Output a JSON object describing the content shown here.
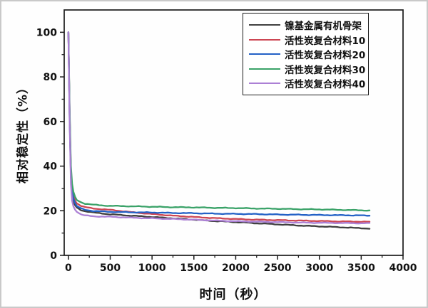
{
  "figure": {
    "background_color": "#fefefe",
    "frame_color": "#c9c9c9",
    "axis_color": "#1a1a1a"
  },
  "chart_data": {
    "type": "line",
    "title": "",
    "xlabel": "时间（秒）",
    "ylabel": "相对稳定性（%）",
    "xlim": [
      -50,
      4000
    ],
    "ylim": [
      0,
      110
    ],
    "x_ticks": [
      0,
      500,
      1000,
      1500,
      2000,
      2500,
      3000,
      3500,
      4000
    ],
    "y_ticks": [
      0,
      20,
      40,
      60,
      80,
      100
    ],
    "x_minor_ticks": [
      250,
      750,
      1250,
      1750,
      2250,
      2750,
      3250,
      3750
    ],
    "y_minor_ticks": [
      10,
      30,
      50,
      70,
      90
    ],
    "grid": false,
    "legend_position": "top-right-inside",
    "x": [
      0,
      15,
      30,
      45,
      60,
      80,
      100,
      150,
      200,
      300,
      400,
      500,
      750,
      1000,
      1250,
      1500,
      1750,
      2000,
      2250,
      2500,
      2750,
      3000,
      3250,
      3500,
      3600
    ],
    "series": [
      {
        "name": "镍基金属有机骨架",
        "color": "#404040",
        "values": [
          100,
          62,
          35,
          27,
          24,
          22.5,
          21.5,
          20.3,
          19.8,
          19.2,
          18.8,
          18.4,
          17.8,
          17.2,
          16.6,
          16.0,
          15.4,
          14.9,
          14.4,
          13.9,
          13.4,
          13.0,
          12.6,
          12.2,
          12.0
        ]
      },
      {
        "name": "活性炭复合材料10",
        "color": "#cd4653",
        "values": [
          100,
          64,
          38,
          30,
          27,
          24.5,
          23.3,
          22.2,
          21.6,
          21.0,
          20.7,
          20.4,
          19.4,
          18.5,
          17.8,
          17.2,
          16.7,
          16.3,
          16.0,
          15.8,
          15.6,
          15.4,
          15.2,
          15.1,
          15.0
        ]
      },
      {
        "name": "活性炭复合材料20",
        "color": "#2361c6",
        "values": [
          100,
          63,
          36,
          28.5,
          25.5,
          23.5,
          22.2,
          21.0,
          20.4,
          19.9,
          19.7,
          19.5,
          19.3,
          19.2,
          19.0,
          18.9,
          18.7,
          18.6,
          18.5,
          18.3,
          18.2,
          18.1,
          18.0,
          17.9,
          17.8
        ]
      },
      {
        "name": "活性炭复合材料30",
        "color": "#3aa268",
        "values": [
          100,
          66,
          40,
          32,
          28.5,
          26.3,
          24.8,
          23.8,
          23.2,
          22.7,
          22.4,
          22.2,
          22.0,
          21.8,
          21.6,
          21.5,
          21.3,
          21.2,
          21.0,
          20.9,
          20.7,
          20.6,
          20.4,
          20.2,
          20.1
        ]
      },
      {
        "name": "活性炭复合材料40",
        "color": "#ac80d5",
        "values": [
          100,
          60,
          32,
          24.5,
          22,
          20.5,
          19.5,
          18.4,
          17.9,
          17.5,
          17.4,
          17.3,
          16.9,
          16.6,
          16.3,
          16.0,
          15.6,
          15.3,
          15.1,
          14.9,
          14.7,
          14.6,
          14.5,
          14.4,
          14.4
        ]
      }
    ]
  }
}
